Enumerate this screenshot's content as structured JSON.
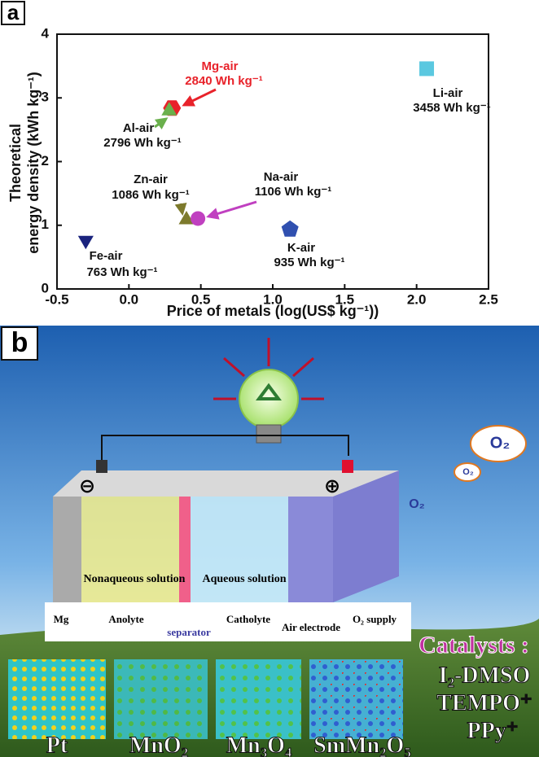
{
  "chart_data": {
    "type": "scatter",
    "panel_label": "a",
    "xlabel": "Price of metals (log(US$ kg⁻¹))",
    "ylabel": [
      "Theoretical",
      "energy density (kWh kg⁻¹)"
    ],
    "xlim": [
      -0.5,
      2.5
    ],
    "xticks": [
      -0.5,
      {
        "value": 0,
        "label": "0.0"
      },
      0.5,
      {
        "value": 1,
        "label": "1.0"
      },
      1.5,
      {
        "value": 2,
        "label": "2.0"
      },
      2.5
    ],
    "ylim": [
      0,
      4
    ],
    "yticks": [
      0,
      1,
      2,
      3,
      4
    ],
    "grid": false,
    "series": [
      {
        "name": "Li-air",
        "color": "#5bc8e0",
        "marker": "square",
        "x": [
          2.07
        ],
        "values": [
          3.458
        ],
        "value_labels": [
          "3458 Wh kg⁻¹"
        ]
      },
      {
        "name": "Mg-air",
        "color": "#e8222a",
        "marker": "hexagon",
        "x": [
          0.3
        ],
        "values": [
          2.84
        ],
        "value_labels": [
          "2840 Wh kg⁻¹"
        ]
      },
      {
        "name": "Al-air",
        "color": "#6ab04c",
        "marker": "triangle",
        "x": [
          0.28
        ],
        "values": [
          2.796
        ],
        "value_labels": [
          "2796 Wh kg⁻¹"
        ]
      },
      {
        "name": "Zn-air",
        "color": "#7d7a2c",
        "marker": "triangle",
        "x": [
          0.4
        ],
        "values": [
          1.086
        ],
        "value_labels": [
          "1086 Wh kg⁻¹"
        ]
      },
      {
        "name": "Na-air",
        "color": "#c040c0",
        "marker": "circle",
        "x": [
          0.48
        ],
        "values": [
          1.106
        ],
        "value_labels": [
          "1106 Wh kg⁻¹"
        ]
      },
      {
        "name": "K-air",
        "color": "#3050b0",
        "marker": "pentagon",
        "x": [
          1.12
        ],
        "values": [
          0.935
        ],
        "value_labels": [
          "935 Wh kg⁻¹"
        ]
      },
      {
        "name": "Fe-air",
        "color": "#1a237e",
        "marker": "triangle-down",
        "x": [
          -0.3
        ],
        "values": [
          0.763
        ],
        "value_labels": [
          "763 Wh kg⁻¹"
        ]
      }
    ]
  },
  "illustration": {
    "panel_label": "b",
    "anode_sign": "⊖",
    "cathode_sign": "⊕",
    "nonaqueous": "Nonaqueous solution",
    "aqueous": "Aqueous solution",
    "regions": [
      "Mg",
      "Anolyte",
      "separator",
      "Catholyte",
      "Air electrode",
      "O₂ supply"
    ],
    "oxygen": [
      "O₂",
      "O₂",
      "O₂"
    ],
    "catalysts_title": "Catalysts :",
    "catalysts": [
      "I₂-DMSO",
      "TEMPO⁺",
      "PPy⁺"
    ],
    "materials": [
      "Pt",
      "MnO₂",
      "Mn₃O₄",
      "SmMn₂O₅"
    ]
  }
}
